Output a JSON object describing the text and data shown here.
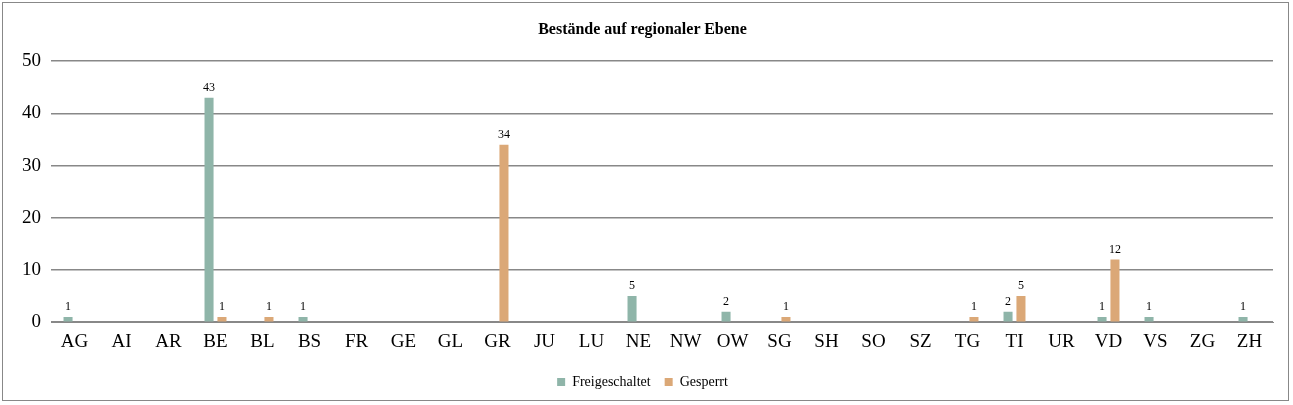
{
  "chart_data": {
    "type": "bar",
    "title": "Bestände auf regionaler Ebene",
    "categories": [
      "AG",
      "AI",
      "AR",
      "BE",
      "BL",
      "BS",
      "FR",
      "GE",
      "GL",
      "GR",
      "JU",
      "LU",
      "NE",
      "NW",
      "OW",
      "SG",
      "SH",
      "SO",
      "SZ",
      "TG",
      "TI",
      "UR",
      "VD",
      "VS",
      "ZG",
      "ZH"
    ],
    "series": [
      {
        "name": "Freigeschaltet",
        "color": "#8fb5a9",
        "values": [
          1,
          null,
          null,
          43,
          null,
          1,
          null,
          null,
          null,
          null,
          null,
          null,
          5,
          null,
          2,
          null,
          null,
          null,
          null,
          null,
          2,
          null,
          1,
          1,
          null,
          1
        ]
      },
      {
        "name": "Gesperrt",
        "color": "#dba877",
        "values": [
          null,
          null,
          null,
          1,
          1,
          null,
          null,
          null,
          null,
          34,
          null,
          null,
          null,
          null,
          null,
          1,
          null,
          null,
          null,
          1,
          5,
          null,
          12,
          null,
          null,
          null
        ]
      }
    ],
    "ylim": [
      0,
      50
    ],
    "yticks": [
      0,
      10,
      20,
      30,
      40,
      50
    ],
    "grid": "y",
    "legend": "bottom",
    "data_labels": true
  }
}
